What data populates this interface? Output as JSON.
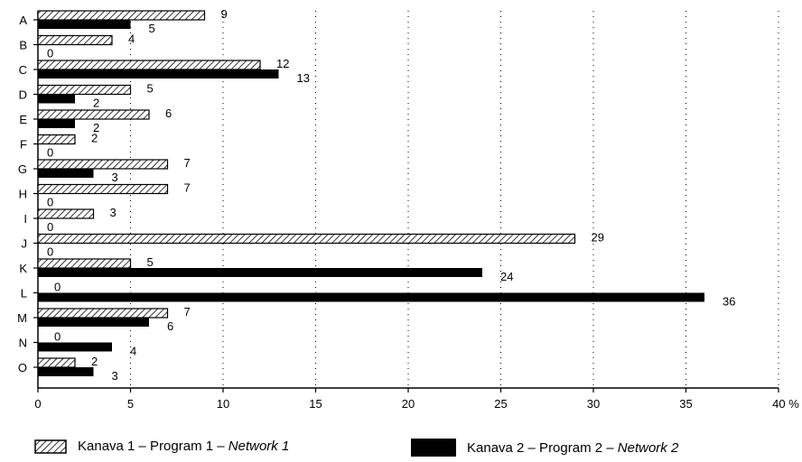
{
  "chart_data": {
    "type": "bar",
    "orientation": "horizontal",
    "categories": [
      "A",
      "B",
      "C",
      "D",
      "E",
      "F",
      "G",
      "H",
      "I",
      "J",
      "K",
      "L",
      "M",
      "N",
      "O"
    ],
    "series": [
      {
        "name": "Kanava 1 – Program 1 – Network 1",
        "name_prefix": "Kanava 1 – Program 1 – ",
        "name_suffix": "Network 1",
        "pattern": "hatched",
        "values": [
          9,
          4,
          12,
          5,
          6,
          2,
          7,
          7,
          3,
          29,
          5,
          0,
          7,
          0,
          2
        ]
      },
      {
        "name": "Kanava 2 – Program 2 – Network 2",
        "name_prefix": "Kanava 2 – Program 2 – ",
        "name_suffix": "Network 2",
        "pattern": "solid",
        "values": [
          5,
          0,
          13,
          2,
          2,
          0,
          3,
          0,
          0,
          0,
          24,
          36,
          6,
          4,
          3
        ]
      }
    ],
    "xlim": [
      0,
      40
    ],
    "x_ticks": [
      "0",
      "5",
      "10",
      "15",
      "20",
      "25",
      "30",
      "35",
      "40 %"
    ],
    "grid": "vertical-dotted",
    "legend_position": "bottom",
    "colors": {
      "solid": "#000000",
      "hatch": "#000000",
      "background": "#ffffff"
    }
  }
}
